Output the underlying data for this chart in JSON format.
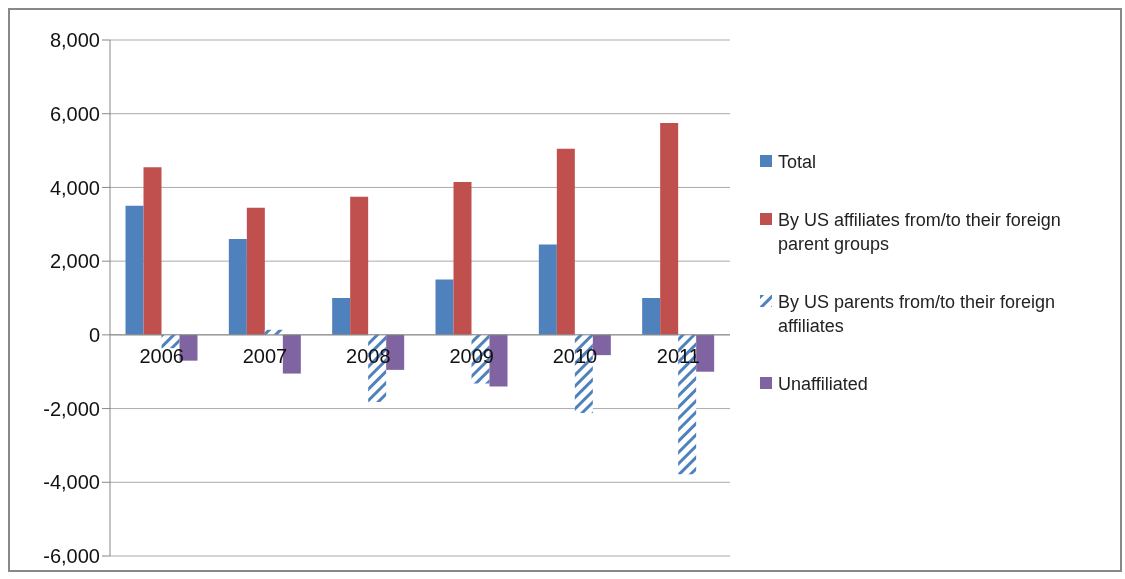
{
  "chart_data": {
    "type": "bar",
    "categories": [
      "2006",
      "2007",
      "2008",
      "2009",
      "2010",
      "2011"
    ],
    "series": [
      {
        "name": "Total",
        "color": "#4f81bd",
        "values": [
          3500,
          2600,
          1000,
          1500,
          2450,
          1000
        ]
      },
      {
        "name": "By US affiliates from/to their foreign parent groups",
        "color": "#c0504d",
        "values": [
          4550,
          3450,
          3750,
          4150,
          5050,
          5750
        ]
      },
      {
        "name": "By US parents from/to their foreign affiliates",
        "color": "#4f81bd",
        "values": [
          -360,
          140,
          -1820,
          -1320,
          -2120,
          -3780
        ]
      },
      {
        "name": "Unaffiliated",
        "color": "#8064a2",
        "values": [
          -700,
          -1050,
          -950,
          -1400,
          -550,
          -1000
        ]
      }
    ],
    "ylim": [
      -6000,
      8000
    ],
    "yticks": [
      {
        "value": -6000,
        "label": "-6,000"
      },
      {
        "value": -4000,
        "label": "-4,000"
      },
      {
        "value": -2000,
        "label": "-2,000"
      },
      0,
      {
        "value": 2000,
        "label": "2,000"
      },
      {
        "value": 4000,
        "label": "4,000"
      },
      {
        "value": 6000,
        "label": "6,000"
      },
      {
        "value": 8000,
        "label": "8,000"
      }
    ],
    "grid": "y",
    "legend": "right"
  }
}
